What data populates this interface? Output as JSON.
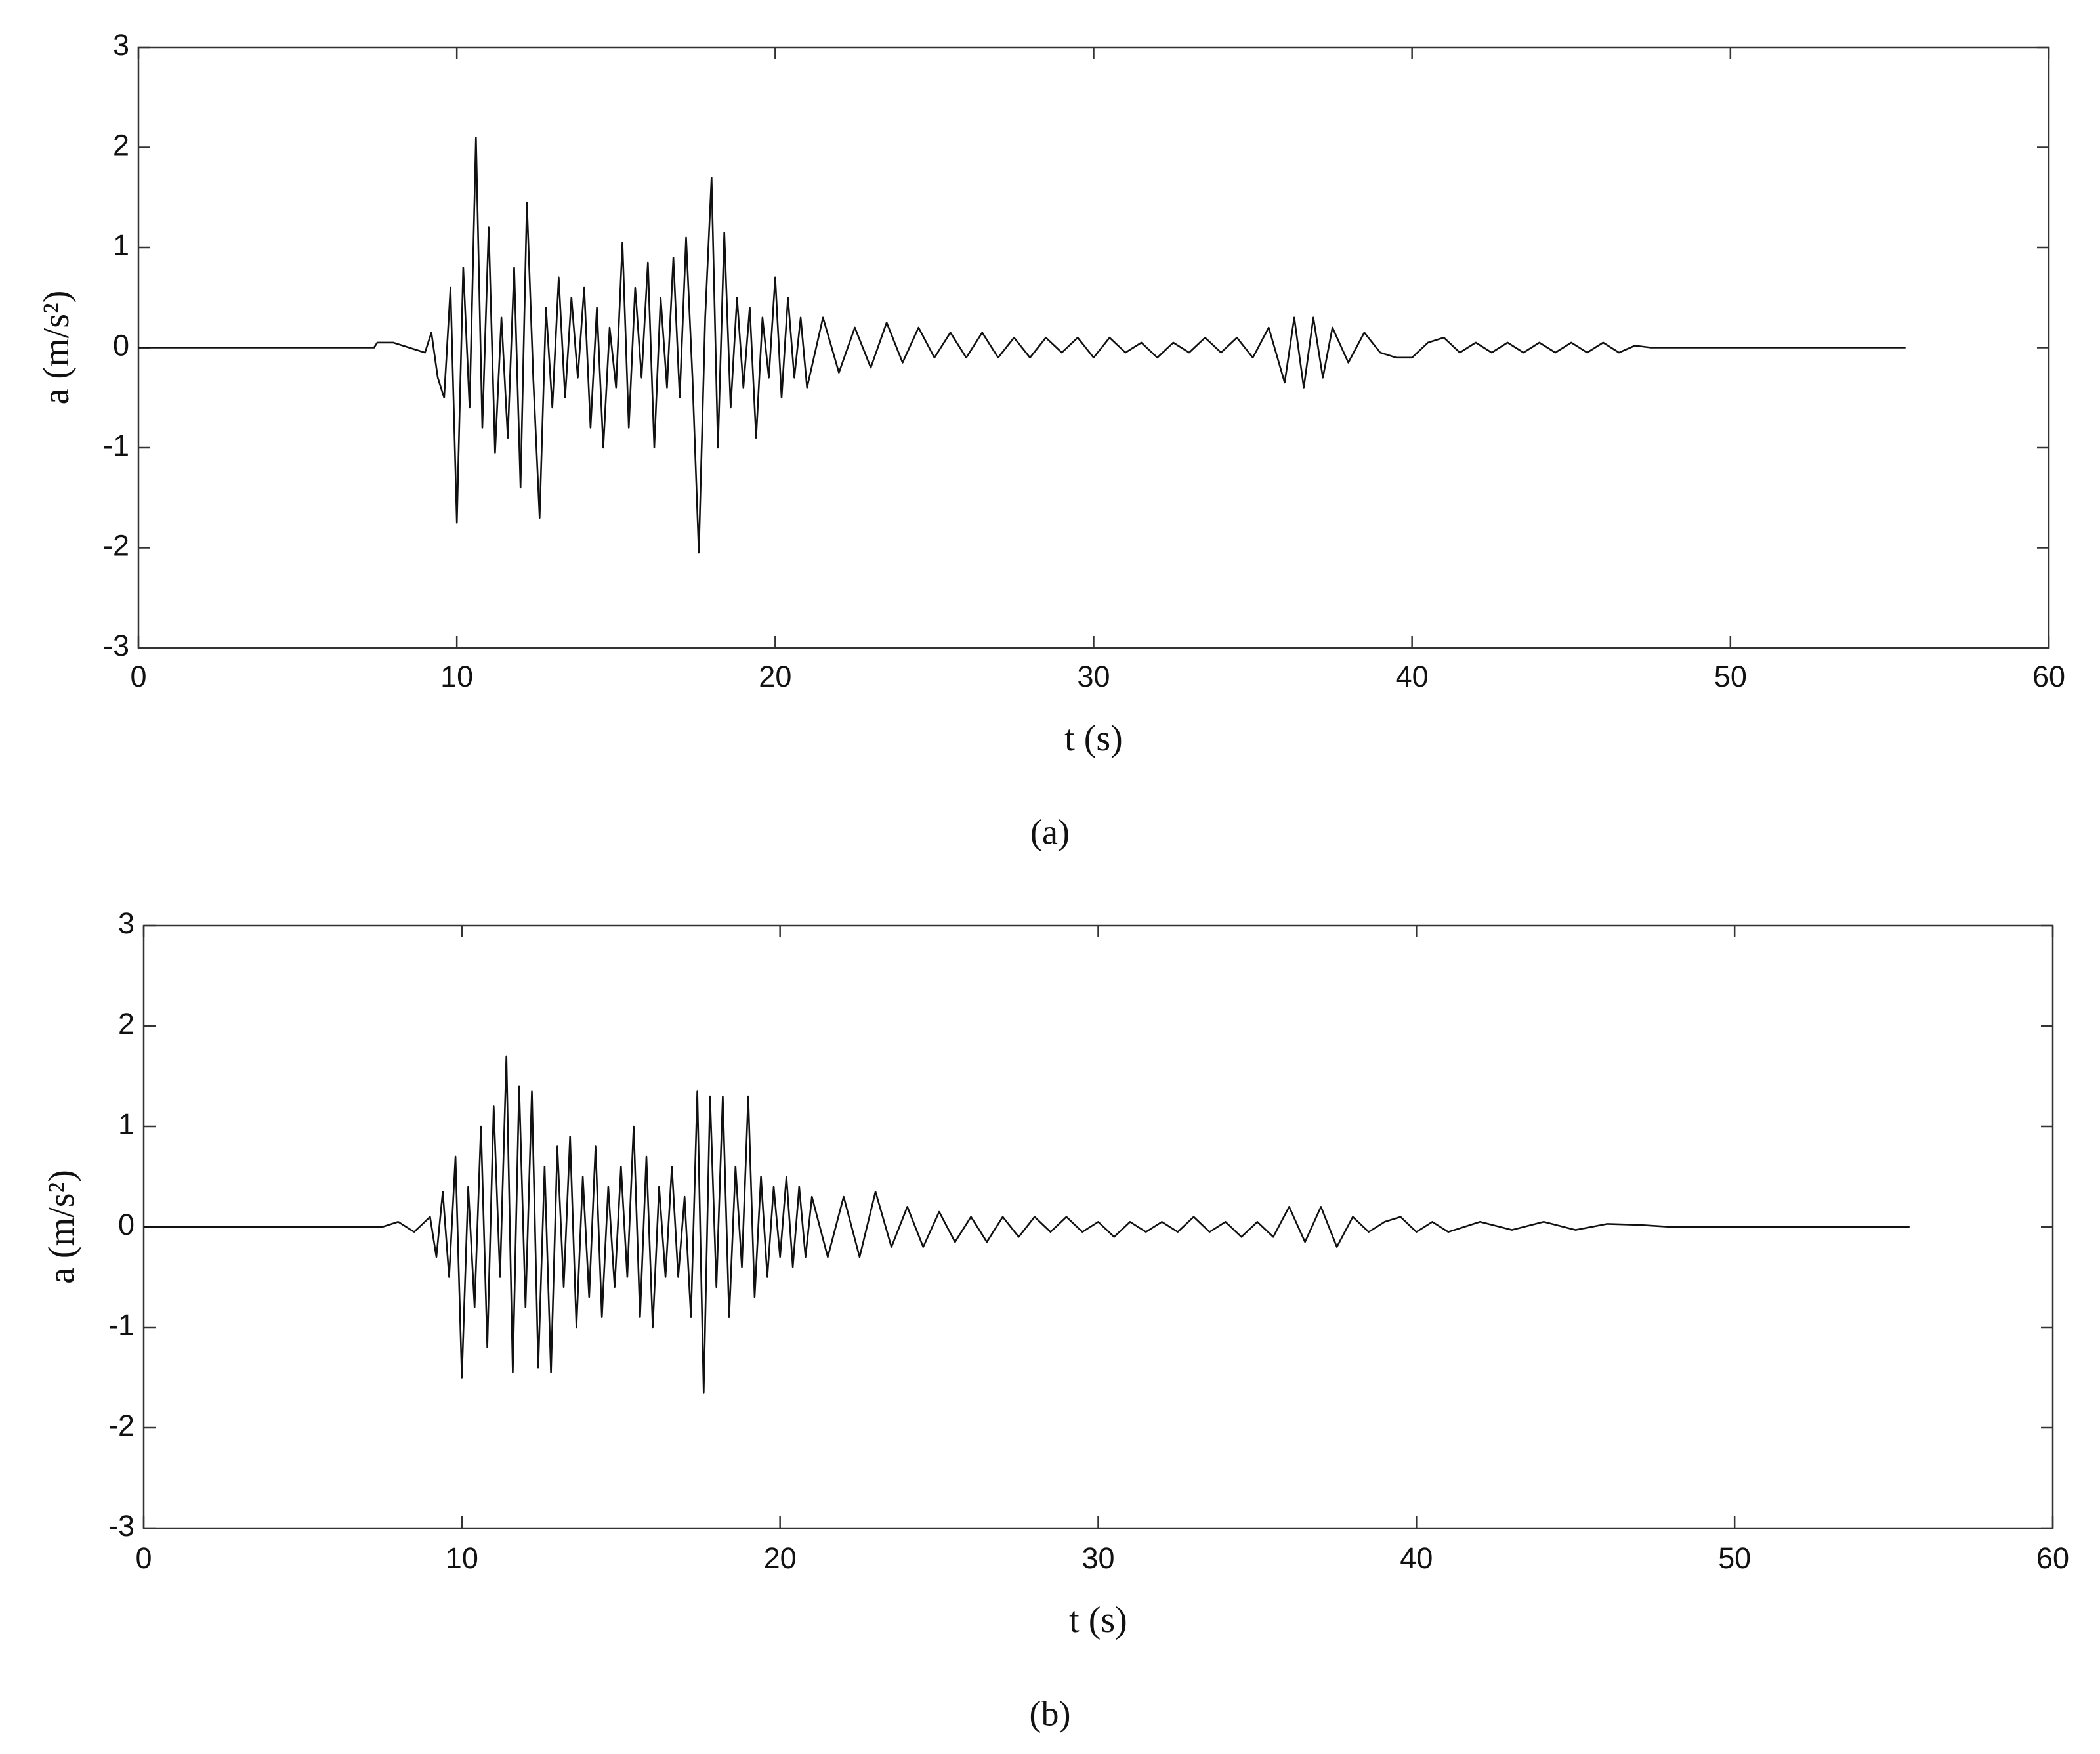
{
  "chart_data": [
    {
      "type": "line",
      "caption": "(a)",
      "xlabel": "t (s)",
      "ylabel": "a (m/s²)",
      "color": "#111111",
      "xlim": [
        0,
        60
      ],
      "xticks": [
        0,
        10,
        20,
        30,
        40,
        50,
        60
      ],
      "ylim": [
        -3,
        3
      ],
      "yticks": [
        -3,
        -2,
        -1,
        0,
        1,
        2,
        3
      ],
      "x": [
        0,
        7.4,
        7.5,
        8,
        8.5,
        9,
        9.2,
        9.4,
        9.6,
        9.8,
        10,
        10.2,
        10.4,
        10.6,
        10.8,
        11,
        11.2,
        11.4,
        11.6,
        11.8,
        12,
        12.2,
        12.4,
        12.6,
        12.8,
        13,
        13.2,
        13.4,
        13.6,
        13.8,
        14,
        14.2,
        14.4,
        14.6,
        14.8,
        15,
        15.2,
        15.4,
        15.6,
        15.8,
        16,
        16.2,
        16.4,
        16.6,
        16.8,
        17,
        17.2,
        17.4,
        17.6,
        17.8,
        18,
        18.2,
        18.4,
        18.6,
        18.8,
        19,
        19.2,
        19.4,
        19.6,
        19.8,
        20,
        20.2,
        20.4,
        20.6,
        20.8,
        21,
        21.5,
        22,
        22.5,
        23,
        23.5,
        24,
        24.5,
        25,
        25.5,
        26,
        26.5,
        27,
        27.5,
        28,
        28.5,
        29,
        29.5,
        30,
        30.5,
        31,
        31.5,
        32,
        32.5,
        33,
        33.5,
        34,
        34.5,
        35,
        35.5,
        36,
        36.3,
        36.6,
        36.9,
        37.2,
        37.5,
        38,
        38.5,
        39,
        39.5,
        40,
        40.5,
        41,
        41.5,
        42,
        42.5,
        43,
        43.5,
        44,
        44.5,
        45,
        45.5,
        46,
        46.5,
        47,
        47.5,
        55.5
      ],
      "values": [
        0,
        0,
        0.05,
        0.05,
        0,
        -0.05,
        0.15,
        -0.3,
        -0.5,
        0.6,
        -1.75,
        0.8,
        -0.6,
        2.1,
        -0.8,
        1.2,
        -1.05,
        0.3,
        -0.9,
        0.8,
        -1.4,
        1.45,
        -0.3,
        -1.7,
        0.4,
        -0.6,
        0.7,
        -0.5,
        0.5,
        -0.3,
        0.6,
        -0.8,
        0.4,
        -1.0,
        0.2,
        -0.4,
        1.05,
        -0.8,
        0.6,
        -0.3,
        0.85,
        -1.0,
        0.5,
        -0.4,
        0.9,
        -0.5,
        1.1,
        -0.3,
        -2.05,
        0.3,
        1.7,
        -1.0,
        1.15,
        -0.6,
        0.5,
        -0.4,
        0.4,
        -0.9,
        0.3,
        -0.3,
        0.7,
        -0.5,
        0.5,
        -0.3,
        0.3,
        -0.4,
        0.3,
        -0.25,
        0.2,
        -0.2,
        0.25,
        -0.15,
        0.2,
        -0.1,
        0.15,
        -0.1,
        0.15,
        -0.1,
        0.1,
        -0.1,
        0.1,
        -0.05,
        0.1,
        -0.1,
        0.1,
        -0.05,
        0.05,
        -0.1,
        0.05,
        -0.05,
        0.1,
        -0.05,
        0.1,
        -0.1,
        0.2,
        -0.35,
        0.3,
        -0.4,
        0.3,
        -0.3,
        0.2,
        -0.15,
        0.15,
        -0.05,
        -0.1,
        -0.1,
        0.05,
        0.1,
        -0.05,
        0.05,
        -0.05,
        0.05,
        -0.05,
        0.05,
        -0.05,
        0.05,
        -0.05,
        0.05,
        -0.05,
        0.02,
        0,
        0
      ]
    },
    {
      "type": "line",
      "caption": "(b)",
      "xlabel": "t (s)",
      "ylabel": "a (m/s²)",
      "color": "#111111",
      "xlim": [
        0,
        60
      ],
      "xticks": [
        0,
        10,
        20,
        30,
        40,
        50,
        60
      ],
      "ylim": [
        -3,
        3
      ],
      "yticks": [
        -3,
        -2,
        -1,
        0,
        1,
        2,
        3
      ],
      "x": [
        0,
        7.5,
        8,
        8.5,
        9,
        9.2,
        9.4,
        9.6,
        9.8,
        10,
        10.2,
        10.4,
        10.6,
        10.8,
        11,
        11.2,
        11.4,
        11.6,
        11.8,
        12,
        12.2,
        12.4,
        12.6,
        12.8,
        13,
        13.2,
        13.4,
        13.6,
        13.8,
        14,
        14.2,
        14.4,
        14.6,
        14.8,
        15,
        15.2,
        15.4,
        15.6,
        15.8,
        16,
        16.2,
        16.4,
        16.6,
        16.8,
        17,
        17.2,
        17.4,
        17.6,
        17.8,
        18,
        18.2,
        18.4,
        18.6,
        18.8,
        19,
        19.2,
        19.4,
        19.6,
        19.8,
        20,
        20.2,
        20.4,
        20.6,
        20.8,
        21,
        21.5,
        22,
        22.5,
        23,
        23.5,
        24,
        24.5,
        25,
        25.5,
        26,
        26.5,
        27,
        27.5,
        28,
        28.5,
        29,
        29.5,
        30,
        30.5,
        31,
        31.5,
        32,
        32.5,
        33,
        33.5,
        34,
        34.5,
        35,
        35.5,
        36,
        36.5,
        37,
        37.5,
        38,
        38.5,
        39,
        39.5,
        40,
        40.5,
        41,
        42,
        43,
        44,
        45,
        46,
        47,
        48,
        55.5
      ],
      "values": [
        0,
        0,
        0.05,
        -0.05,
        0.1,
        -0.3,
        0.35,
        -0.5,
        0.7,
        -1.5,
        0.4,
        -0.8,
        1.0,
        -1.2,
        1.2,
        -0.5,
        1.7,
        -1.45,
        1.4,
        -0.8,
        1.35,
        -1.4,
        0.6,
        -1.45,
        0.8,
        -0.6,
        0.9,
        -1.0,
        0.5,
        -0.7,
        0.8,
        -0.9,
        0.4,
        -0.6,
        0.6,
        -0.5,
        1.0,
        -0.9,
        0.7,
        -1.0,
        0.4,
        -0.5,
        0.6,
        -0.5,
        0.3,
        -0.9,
        1.35,
        -1.65,
        1.3,
        -0.6,
        1.3,
        -0.9,
        0.6,
        -0.4,
        1.3,
        -0.7,
        0.5,
        -0.5,
        0.4,
        -0.3,
        0.5,
        -0.4,
        0.4,
        -0.3,
        0.3,
        -0.3,
        0.3,
        -0.3,
        0.35,
        -0.2,
        0.2,
        -0.2,
        0.15,
        -0.15,
        0.1,
        -0.15,
        0.1,
        -0.1,
        0.1,
        -0.05,
        0.1,
        -0.05,
        0.05,
        -0.1,
        0.05,
        -0.05,
        0.05,
        -0.05,
        0.1,
        -0.05,
        0.05,
        -0.1,
        0.05,
        -0.1,
        0.2,
        -0.15,
        0.2,
        -0.2,
        0.1,
        -0.05,
        0.05,
        0.1,
        -0.05,
        0.05,
        -0.05,
        0.05,
        -0.03,
        0.05,
        -0.03,
        0.03,
        0.02,
        0,
        0
      ]
    }
  ]
}
